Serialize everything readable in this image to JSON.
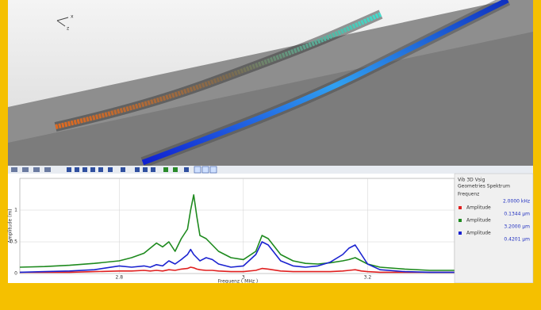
{
  "view3d": {
    "axes": [
      "x",
      "z"
    ]
  },
  "panel": {
    "title": "Vib 3D Vsig",
    "subtitle": "Geometries Spektrum",
    "frequency_label": "Frequenz",
    "frequency_value": "2.0000 kHz",
    "readings": [
      "0.1344 μm",
      "3.2000 μm",
      "0.4201 μm"
    ]
  },
  "chart_data": {
    "type": "line",
    "x_label": "Frequenz ( MHz )",
    "y_label": "Amplitude (m)",
    "x": [
      2.64,
      2.68,
      2.72,
      2.76,
      2.8,
      2.82,
      2.84,
      2.85,
      2.86,
      2.87,
      2.88,
      2.89,
      2.9,
      2.91,
      2.915,
      2.92,
      2.925,
      2.93,
      2.94,
      2.95,
      2.96,
      2.98,
      3.0,
      3.02,
      3.03,
      3.04,
      3.06,
      3.08,
      3.1,
      3.12,
      3.14,
      3.16,
      3.17,
      3.18,
      3.19,
      3.2,
      3.22,
      3.26,
      3.3,
      3.34
    ],
    "series": [
      {
        "name": "Amplitude",
        "color": "#e02020",
        "values": [
          0.02,
          0.02,
          0.02,
          0.03,
          0.04,
          0.04,
          0.05,
          0.04,
          0.05,
          0.04,
          0.06,
          0.05,
          0.07,
          0.08,
          0.1,
          0.09,
          0.07,
          0.06,
          0.05,
          0.05,
          0.04,
          0.03,
          0.03,
          0.05,
          0.08,
          0.07,
          0.04,
          0.03,
          0.03,
          0.03,
          0.03,
          0.04,
          0.05,
          0.06,
          0.04,
          0.03,
          0.02,
          0.02,
          0.02,
          0.02
        ]
      },
      {
        "name": "Amplitude",
        "color": "#1e8a1e",
        "values": [
          0.1,
          0.11,
          0.13,
          0.16,
          0.2,
          0.25,
          0.32,
          0.4,
          0.48,
          0.42,
          0.5,
          0.35,
          0.55,
          0.7,
          1.0,
          1.24,
          0.9,
          0.6,
          0.55,
          0.45,
          0.35,
          0.25,
          0.22,
          0.35,
          0.6,
          0.55,
          0.3,
          0.2,
          0.16,
          0.15,
          0.17,
          0.2,
          0.22,
          0.25,
          0.2,
          0.15,
          0.1,
          0.07,
          0.05,
          0.05
        ]
      },
      {
        "name": "Amplitude",
        "color": "#1a22d0",
        "values": [
          0.02,
          0.03,
          0.04,
          0.06,
          0.12,
          0.1,
          0.12,
          0.1,
          0.14,
          0.12,
          0.2,
          0.15,
          0.22,
          0.3,
          0.38,
          0.3,
          0.25,
          0.2,
          0.25,
          0.22,
          0.15,
          0.1,
          0.12,
          0.3,
          0.5,
          0.45,
          0.2,
          0.12,
          0.1,
          0.12,
          0.18,
          0.3,
          0.4,
          0.45,
          0.3,
          0.15,
          0.06,
          0.03,
          0.02,
          0.02
        ]
      }
    ],
    "xlim": [
      2.64,
      3.34
    ],
    "ylim": [
      0,
      1.5
    ],
    "xticks": [
      2.8,
      3,
      3.2
    ],
    "yticks": [
      0,
      0.5,
      1
    ],
    "grid": true
  }
}
